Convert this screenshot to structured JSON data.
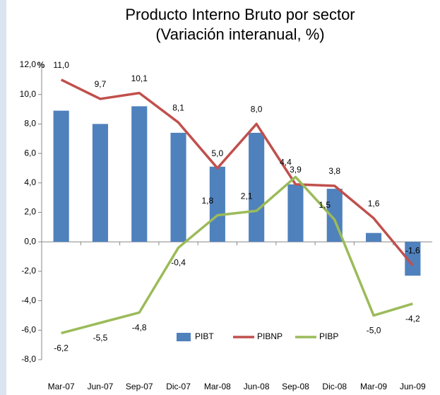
{
  "chart_data": {
    "type": "bar_line",
    "title": "Producto Interno Bruto por sector",
    "subtitle": "(Variación interanual, %)",
    "y_unit": "%",
    "categories": [
      "Mar-07",
      "Jun-07",
      "Sep-07",
      "Dic-07",
      "Mar-08",
      "Jun-08",
      "Sep-08",
      "Dic-08",
      "Mar-09",
      "Jun-09"
    ],
    "series": [
      {
        "name": "PIBT",
        "kind": "bar",
        "color": "#4f81bd",
        "values": [
          8.9,
          8.0,
          9.2,
          7.4,
          5.1,
          7.4,
          3.9,
          3.6,
          0.6,
          -2.3
        ]
      },
      {
        "name": "PIBNP",
        "kind": "line",
        "color": "#c0504d",
        "values": [
          11.0,
          9.7,
          10.1,
          8.1,
          5.0,
          8.0,
          3.9,
          3.8,
          1.6,
          -1.6
        ],
        "value_labels": [
          "11,0",
          "9,7",
          "10,1",
          "8,1",
          "5,0",
          "8,0",
          "3,9",
          "3,8",
          "1,6",
          "-1,6"
        ]
      },
      {
        "name": "PIBP",
        "kind": "line",
        "color": "#9bbb59",
        "values": [
          -6.2,
          -5.5,
          -4.8,
          -0.4,
          1.8,
          2.1,
          4.4,
          1.5,
          -5.0,
          -4.2
        ],
        "value_labels": [
          "-6,2",
          "-5,5",
          "-4,8",
          "-0,4",
          "1,8",
          "2,1",
          "4,4",
          "1,5",
          "-5,0",
          "-4,2"
        ]
      }
    ],
    "ylim": [
      -8,
      12
    ],
    "yticks": [
      {
        "value": -8,
        "label": "-8,0"
      },
      {
        "value": -6,
        "label": "-6,0"
      },
      {
        "value": -4,
        "label": "-4,0"
      },
      {
        "value": -2,
        "label": "-2,0"
      },
      {
        "value": 0,
        "label": "0,0"
      },
      {
        "value": 2,
        "label": "2,0"
      },
      {
        "value": 4,
        "label": "4,0"
      },
      {
        "value": 6,
        "label": "6,0"
      },
      {
        "value": 8,
        "label": "8,0"
      },
      {
        "value": 10,
        "label": "10,0"
      },
      {
        "value": 12,
        "label": "12,0"
      }
    ],
    "legend": "bottom"
  }
}
